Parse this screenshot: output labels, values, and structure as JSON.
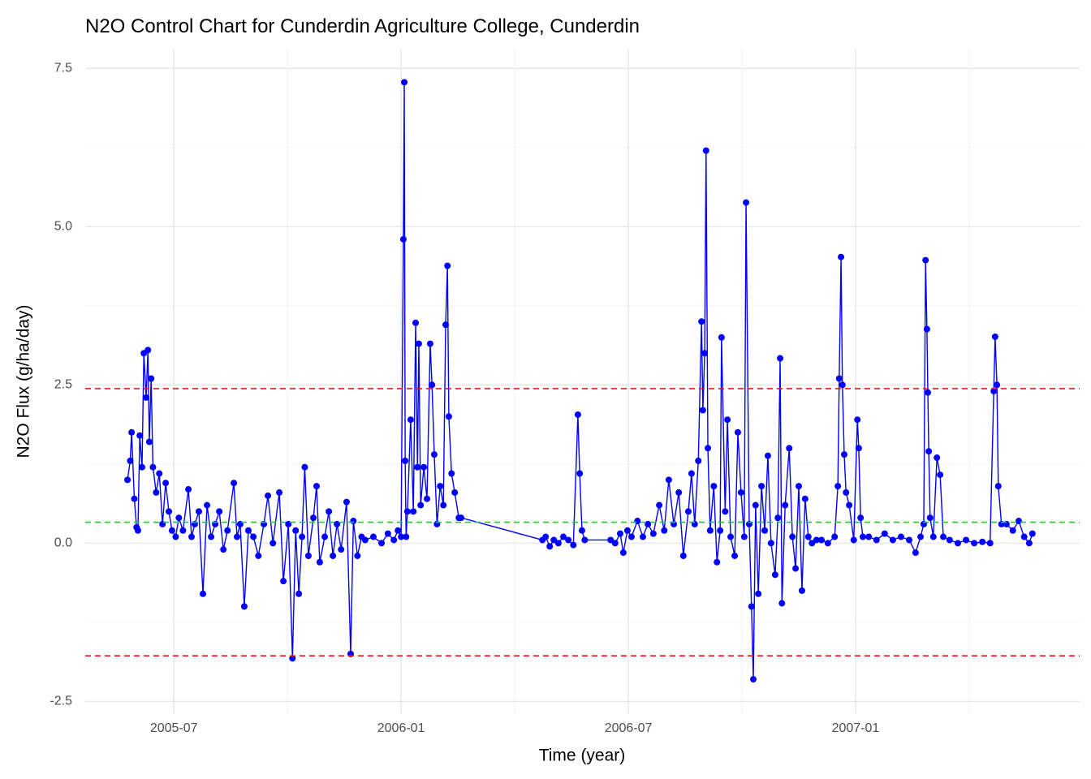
{
  "chart_data": {
    "type": "line",
    "title": "N2O Control Chart for Cunderdin Agriculture College, Cunderdin",
    "x_label": "Time (year)",
    "y_label": "N2O Flux (g/ha/day)",
    "xlim": [
      2005.305,
      2007.493
    ],
    "ylim": [
      -2.7,
      7.81
    ],
    "xticks": [
      {
        "value": 2005.5,
        "label": "2005-07"
      },
      {
        "value": 2006.0,
        "label": "2006-01"
      },
      {
        "value": 2006.5,
        "label": "2006-07"
      },
      {
        "value": 2007.0,
        "label": "2007-01"
      }
    ],
    "yticks": [
      -2.5,
      {
        "value": 0,
        "label": "0.0"
      },
      2.5,
      {
        "value": 5,
        "label": "5.0"
      },
      7.5
    ],
    "grid": true,
    "reference_lines": [
      {
        "value": 2.44,
        "color": "#e41a1c"
      },
      {
        "value": 0.33,
        "color": "#22cc22"
      },
      {
        "value": -1.78,
        "color": "#e41a1c"
      }
    ],
    "series": [
      {
        "color": "#0000ff",
        "x": [
          2005.398,
          2005.404,
          2005.407,
          2005.413,
          2005.418,
          2005.421,
          2005.425,
          2005.43,
          2005.434,
          2005.439,
          2005.443,
          2005.446,
          2005.45,
          2005.454,
          2005.461,
          2005.468,
          2005.475,
          2005.482,
          2005.489,
          2005.496,
          2005.504,
          2005.511,
          2005.52,
          2005.532,
          2005.539,
          2005.546,
          2005.555,
          2005.564,
          2005.573,
          2005.582,
          2005.591,
          2005.6,
          2005.609,
          2005.618,
          2005.632,
          2005.639,
          2005.646,
          2005.655,
          2005.664,
          2005.675,
          2005.686,
          2005.698,
          2005.707,
          2005.718,
          2005.732,
          2005.741,
          2005.752,
          2005.761,
          2005.768,
          2005.775,
          2005.782,
          2005.788,
          2005.796,
          2005.807,
          2005.814,
          2005.821,
          2005.832,
          2005.841,
          2005.85,
          2005.859,
          2005.868,
          2005.88,
          2005.889,
          2005.895,
          2005.904,
          2005.913,
          2005.921,
          2005.939,
          2005.957,
          2005.971,
          2005.984,
          2005.993,
          2006.0,
          2006.005,
          2006.007,
          2006.009,
          2006.011,
          2006.014,
          2006.021,
          2006.027,
          2006.032,
          2006.036,
          2006.039,
          2006.043,
          2006.05,
          2006.057,
          2006.064,
          2006.068,
          2006.073,
          2006.079,
          2006.086,
          2006.093,
          2006.098,
          2006.102,
          2006.105,
          2006.111,
          2006.118,
          2006.127,
          2006.132,
          2006.311,
          2006.318,
          2006.327,
          2006.336,
          2006.346,
          2006.357,
          2006.368,
          2006.379,
          2006.389,
          2006.393,
          2006.398,
          2006.404,
          2006.461,
          2006.471,
          2006.482,
          2006.489,
          2006.498,
          2006.507,
          2006.52,
          2006.532,
          2006.543,
          2006.555,
          2006.568,
          2006.579,
          2006.589,
          2006.6,
          2006.611,
          2006.621,
          2006.632,
          2006.639,
          2006.646,
          2006.654,
          2006.661,
          2006.664,
          2006.668,
          2006.671,
          2006.675,
          2006.68,
          2006.688,
          2006.695,
          2006.702,
          2006.705,
          2006.713,
          2006.718,
          2006.725,
          2006.734,
          2006.741,
          2006.748,
          2006.755,
          2006.759,
          2006.766,
          2006.771,
          2006.775,
          2006.78,
          2006.786,
          2006.793,
          2006.8,
          2006.807,
          2006.814,
          2006.823,
          2006.829,
          2006.834,
          2006.838,
          2006.845,
          2006.854,
          2006.861,
          2006.868,
          2006.875,
          2006.882,
          2006.889,
          2006.896,
          2006.904,
          2006.914,
          2006.925,
          2006.939,
          2006.954,
          2006.961,
          2006.964,
          2006.968,
          2006.971,
          2006.975,
          2006.979,
          2006.986,
          2006.996,
          2007.004,
          2007.007,
          2007.011,
          2007.016,
          2007.029,
          2007.046,
          2007.064,
          2007.082,
          2007.1,
          2007.118,
          2007.132,
          2007.143,
          2007.15,
          2007.154,
          2007.157,
          2007.159,
          2007.161,
          2007.164,
          2007.171,
          2007.179,
          2007.186,
          2007.193,
          2007.207,
          2007.225,
          2007.243,
          2007.261,
          2007.279,
          2007.296,
          2007.304,
          2007.307,
          2007.311,
          2007.314,
          2007.321,
          2007.332,
          2007.346,
          2007.359,
          2007.371,
          2007.382,
          2007.389
        ],
        "values": [
          1.0,
          1.3,
          1.75,
          0.7,
          0.25,
          0.2,
          1.7,
          1.2,
          3.0,
          2.3,
          3.05,
          1.6,
          2.6,
          1.2,
          0.8,
          1.1,
          0.3,
          0.95,
          0.5,
          0.2,
          0.1,
          0.4,
          0.2,
          0.85,
          0.1,
          0.3,
          0.5,
          -0.8,
          0.6,
          0.1,
          0.3,
          0.5,
          -0.1,
          0.2,
          0.95,
          0.1,
          0.3,
          -1.0,
          0.2,
          0.1,
          -0.2,
          0.3,
          0.75,
          0.0,
          0.8,
          -0.6,
          0.3,
          -1.82,
          0.2,
          -0.8,
          0.1,
          1.2,
          -0.2,
          0.4,
          0.9,
          -0.3,
          0.1,
          0.5,
          -0.2,
          0.3,
          -0.1,
          0.65,
          -1.75,
          0.35,
          -0.2,
          0.1,
          0.05,
          0.1,
          0.0,
          0.15,
          0.05,
          0.2,
          0.1,
          4.8,
          7.28,
          1.3,
          0.1,
          0.5,
          1.95,
          0.5,
          3.48,
          1.2,
          3.15,
          0.6,
          1.2,
          0.7,
          3.15,
          2.5,
          1.4,
          0.3,
          0.9,
          0.6,
          3.45,
          4.38,
          2.0,
          1.1,
          0.8,
          0.4,
          0.4,
          0.05,
          0.1,
          -0.05,
          0.05,
          0.0,
          0.1,
          0.05,
          -0.03,
          2.03,
          1.1,
          0.2,
          0.05,
          0.05,
          0.0,
          0.15,
          -0.15,
          0.2,
          0.1,
          0.35,
          0.1,
          0.3,
          0.15,
          0.6,
          0.2,
          1.0,
          0.3,
          0.8,
          -0.2,
          0.5,
          1.1,
          0.3,
          1.3,
          3.5,
          2.1,
          3.0,
          6.2,
          1.5,
          0.2,
          0.9,
          -0.3,
          0.2,
          3.25,
          0.5,
          1.95,
          0.1,
          -0.2,
          1.75,
          0.8,
          0.1,
          5.38,
          0.3,
          -1.0,
          -2.15,
          0.6,
          -0.8,
          0.9,
          0.2,
          1.38,
          0.0,
          -0.5,
          0.4,
          2.92,
          -0.95,
          0.6,
          1.5,
          0.1,
          -0.4,
          0.9,
          -0.75,
          0.7,
          0.1,
          0.0,
          0.05,
          0.05,
          0.0,
          0.1,
          0.9,
          2.6,
          4.52,
          2.5,
          1.4,
          0.8,
          0.6,
          0.05,
          1.95,
          1.5,
          0.4,
          0.1,
          0.1,
          0.05,
          0.15,
          0.05,
          0.1,
          0.05,
          -0.15,
          0.1,
          0.3,
          4.47,
          3.38,
          2.38,
          1.45,
          0.4,
          0.1,
          1.35,
          1.08,
          0.1,
          0.05,
          0.0,
          0.05,
          0.0,
          0.02,
          0.0,
          2.4,
          3.26,
          2.5,
          0.9,
          0.3,
          0.3,
          0.2,
          0.35,
          0.1,
          0.0,
          0.15
        ]
      }
    ]
  }
}
